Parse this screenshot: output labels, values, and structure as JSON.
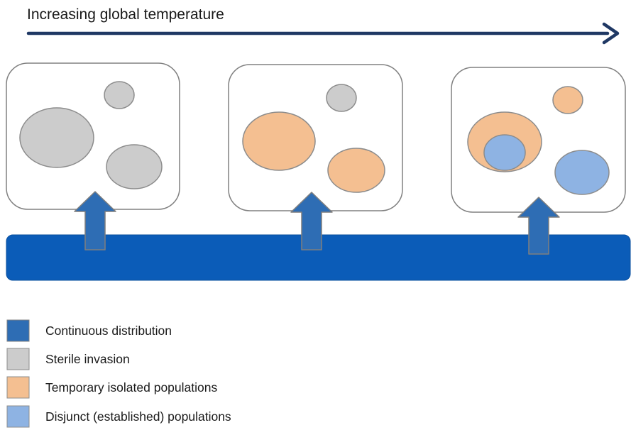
{
  "header": {
    "title": "Increasing global temperature"
  },
  "legend": {
    "items": [
      {
        "key": "continuous",
        "label": "Continuous distribution",
        "color": "#2e6db4"
      },
      {
        "key": "sterile",
        "label": "Sterile invasion",
        "color": "#cccccc"
      },
      {
        "key": "temporary",
        "label": "Temporary isolated populations",
        "color": "#f4bf91"
      },
      {
        "key": "disjunct",
        "label": "Disjunct (established) populations",
        "color": "#8eb3e3"
      }
    ]
  },
  "colors": {
    "arrow": "#1f3864",
    "continuous_bar": "#0b5cb8",
    "up_arrow": "#2e6db4",
    "sterile": "#cccccc",
    "temporary": "#f4bf91",
    "disjunct": "#8eb3e3",
    "panel_border": "#808080",
    "shape_stroke": "#8c8c8c"
  }
}
